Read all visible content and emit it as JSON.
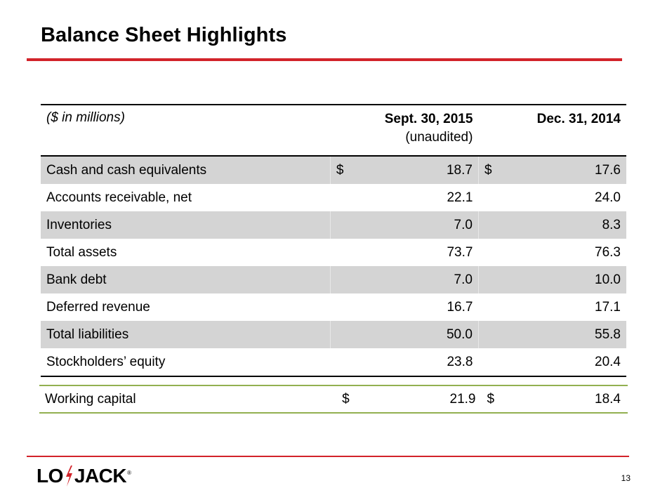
{
  "slide": {
    "title": "Balance Sheet Highlights",
    "page_number": "13",
    "brand": {
      "logo_text_left": "LO",
      "logo_text_right": "JACK",
      "logo_reg": "®",
      "accent_color": "#d2232a"
    }
  },
  "table": {
    "units_label": "($ in millions)",
    "col1_header": "Sept. 30, 2015",
    "col1_subheader": "(unaudited)",
    "col2_header": "Dec. 31, 2014",
    "rows": [
      {
        "label": "Cash and cash equivalents",
        "cur1": "$",
        "v1": "18.7",
        "cur2": "$",
        "v2": "17.6"
      },
      {
        "label": "Accounts receivable, net",
        "cur1": "",
        "v1": "22.1",
        "cur2": "",
        "v2": "24.0"
      },
      {
        "label": "Inventories",
        "cur1": "",
        "v1": "7.0",
        "cur2": "",
        "v2": "8.3"
      },
      {
        "label": "Total assets",
        "cur1": "",
        "v1": "73.7",
        "cur2": "",
        "v2": "76.3"
      },
      {
        "label": "Bank debt",
        "cur1": "",
        "v1": "7.0",
        "cur2": "",
        "v2": "10.0"
      },
      {
        "label": "Deferred revenue",
        "cur1": "",
        "v1": "16.7",
        "cur2": "",
        "v2": "17.1"
      },
      {
        "label": "Total liabilities",
        "cur1": "",
        "v1": "50.0",
        "cur2": "",
        "v2": "55.8"
      },
      {
        "label": "Stockholders’ equity",
        "cur1": "",
        "v1": "23.8",
        "cur2": "",
        "v2": "20.4"
      }
    ]
  },
  "working_capital": {
    "label": "Working capital",
    "cur1": "$",
    "v1": "21.9",
    "cur2": "$",
    "v2": "18.4"
  }
}
